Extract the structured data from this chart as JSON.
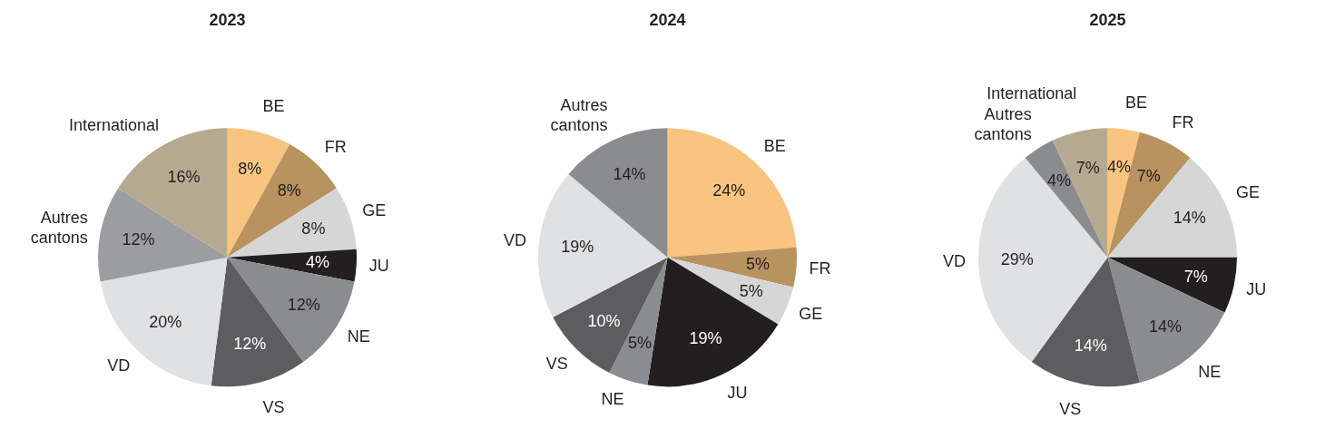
{
  "chart_data": [
    {
      "type": "pie",
      "title": "2023",
      "categories": [
        "BE",
        "FR",
        "GE",
        "JU",
        "NE",
        "VS",
        "VD",
        "Autres cantons",
        "International"
      ],
      "values": [
        8,
        8,
        8,
        4,
        12,
        12,
        20,
        12,
        16
      ],
      "value_labels": [
        "8%",
        "8%",
        "8%",
        "4%",
        "12%",
        "12%",
        "20%",
        "12%",
        "16%"
      ],
      "colors": [
        "#f8c47f",
        "#b8925f",
        "#d6d6d6",
        "#231f20",
        "#8b8c90",
        "#5d5d5f",
        "#e0e1e2",
        "#9c9da1",
        "#b5aa91"
      ],
      "legend": false
    },
    {
      "type": "pie",
      "title": "2024",
      "categories": [
        "BE",
        "FR",
        "GE",
        "JU",
        "NE",
        "VS",
        "VD",
        "Autres cantons"
      ],
      "values": [
        24,
        5,
        5,
        19,
        5,
        10,
        19,
        14
      ],
      "value_labels": [
        "24%",
        "5%",
        "5%",
        "19%",
        "5%",
        "10%",
        "19%",
        "14%"
      ],
      "colors": [
        "#f8c47f",
        "#b8925f",
        "#d6d6d6",
        "#231f20",
        "#8b8c90",
        "#5d5d5f",
        "#e0e1e2",
        "#8b8c90"
      ],
      "legend": false
    },
    {
      "type": "pie",
      "title": "2025",
      "categories": [
        "BE",
        "FR",
        "GE",
        "JU",
        "NE",
        "VS",
        "VD",
        "Autres cantons",
        "International"
      ],
      "values": [
        4,
        7,
        14,
        7,
        14,
        14,
        29,
        4,
        7
      ],
      "value_labels": [
        "4%",
        "7%",
        "14%",
        "7%",
        "14%",
        "14%",
        "29%",
        "4%",
        "7%"
      ],
      "colors": [
        "#f8c47f",
        "#b8925f",
        "#d6d6d6",
        "#231f20",
        "#8b8c90",
        "#5d5d5f",
        "#e0e1e2",
        "#8b8c90",
        "#b5aa91"
      ],
      "legend": false
    }
  ]
}
